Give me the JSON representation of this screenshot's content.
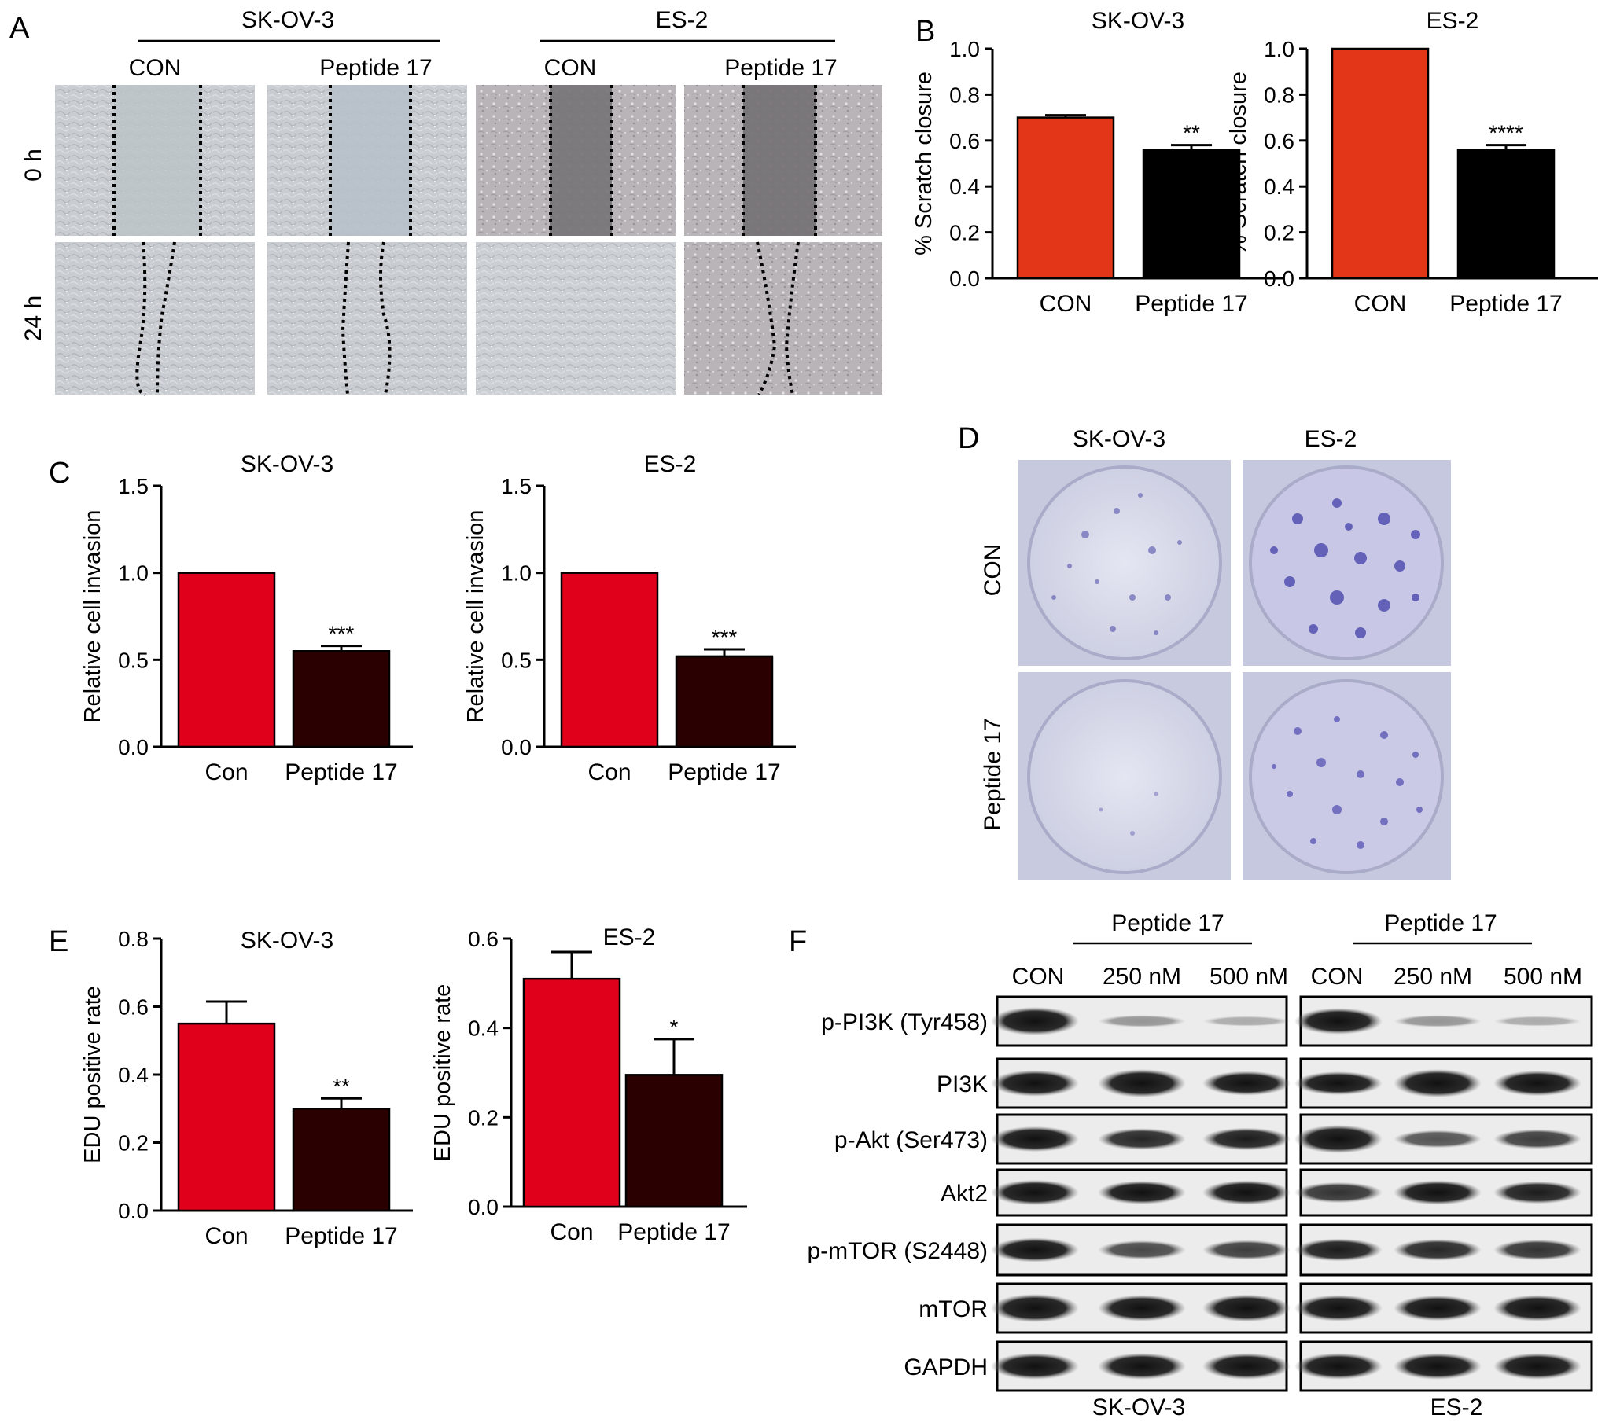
{
  "panels": {
    "A": {
      "letter": "A",
      "cell_lines": [
        "SK-OV-3",
        "ES-2"
      ],
      "treatments": [
        "CON",
        "Peptide 17",
        "CON",
        "Peptide 17"
      ],
      "time_points": [
        "0 h",
        "24 h"
      ]
    },
    "D": {
      "letter": "D",
      "cell_lines": [
        "SK-OV-3",
        "ES-2"
      ],
      "rows": [
        "CON",
        "Peptide 17"
      ]
    },
    "F": {
      "letter": "F",
      "treatment_header": "Peptide 17",
      "lanes": [
        "CON",
        "250 nM",
        "500 nM"
      ],
      "proteins": [
        "p-PI3K (Tyr458)",
        "PI3K",
        "p-Akt (Ser473)",
        "Akt2",
        "p-mTOR (S2448)",
        "mTOR",
        "GAPDH"
      ],
      "cell_lines": [
        "SK-OV-3",
        "ES-2"
      ]
    }
  },
  "colors": {
    "bar_red_B": "#e33517",
    "bar_red_CE": "#e0001b",
    "bar_black": "#000000",
    "bar_dark": "#2a0000",
    "plate_stain": "#5a58b0"
  },
  "chart_data": [
    {
      "panel": "B",
      "type": "bar",
      "title": "SK-OV-3",
      "categories": [
        "CON",
        "Peptide 17"
      ],
      "values": [
        0.7,
        0.56
      ],
      "errors": [
        0.01,
        0.02
      ],
      "significance": [
        "",
        "**"
      ],
      "ylabel": "% Scratch closure",
      "ylim": [
        0,
        1.0
      ],
      "yticks": [
        "0.0",
        "0.2",
        "0.4",
        "0.6",
        "0.8",
        "1.0"
      ],
      "colors": [
        "#e33517",
        "#000000"
      ]
    },
    {
      "panel": "B",
      "type": "bar",
      "title": "ES-2",
      "categories": [
        "CON",
        "Peptide 17"
      ],
      "values": [
        1.0,
        0.56
      ],
      "errors": [
        0.0,
        0.02
      ],
      "significance": [
        "",
        "****"
      ],
      "ylabel": "% Scratch closure",
      "ylim": [
        0,
        1.0
      ],
      "yticks": [
        "0.0",
        "0.2",
        "0.4",
        "0.6",
        "0.8",
        "1.0"
      ],
      "colors": [
        "#e33517",
        "#000000"
      ]
    },
    {
      "panel": "C",
      "type": "bar",
      "title": "SK-OV-3",
      "categories": [
        "Con",
        "Peptide 17"
      ],
      "values": [
        1.0,
        0.55
      ],
      "errors": [
        0.0,
        0.03
      ],
      "significance": [
        "",
        "***"
      ],
      "ylabel": "Relative cell invasion",
      "ylim": [
        0,
        1.5
      ],
      "yticks": [
        "0.0",
        "0.5",
        "1.0",
        "1.5"
      ],
      "colors": [
        "#e0001b",
        "#2a0000"
      ]
    },
    {
      "panel": "C",
      "type": "bar",
      "title": "ES-2",
      "categories": [
        "Con",
        "Peptide 17"
      ],
      "values": [
        1.0,
        0.52
      ],
      "errors": [
        0.0,
        0.04
      ],
      "significance": [
        "",
        "***"
      ],
      "ylabel": "Relative cell invasion",
      "ylim": [
        0,
        1.5
      ],
      "yticks": [
        "0.0",
        "0.5",
        "1.0",
        "1.5"
      ],
      "colors": [
        "#e0001b",
        "#2a0000"
      ]
    },
    {
      "panel": "E",
      "type": "bar",
      "title": "SK-OV-3",
      "categories": [
        "Con",
        "Peptide 17"
      ],
      "values": [
        0.55,
        0.3
      ],
      "errors": [
        0.065,
        0.03
      ],
      "significance": [
        "",
        "**"
      ],
      "ylabel": "EDU positive rate",
      "ylim": [
        0,
        0.8
      ],
      "yticks": [
        "0.0",
        "0.2",
        "0.4",
        "0.6",
        "0.8"
      ],
      "colors": [
        "#e0001b",
        "#2a0000"
      ]
    },
    {
      "panel": "E",
      "type": "bar",
      "title": "ES-2",
      "categories": [
        "Con",
        "Peptide 17"
      ],
      "values": [
        0.51,
        0.295
      ],
      "errors": [
        0.06,
        0.08
      ],
      "significance": [
        "",
        "*"
      ],
      "ylabel": "EDU positive rate",
      "ylim": [
        0,
        0.6
      ],
      "yticks": [
        "0.0",
        "0.2",
        "0.4",
        "0.6"
      ],
      "colors": [
        "#e0001b",
        "#2a0000"
      ]
    }
  ]
}
